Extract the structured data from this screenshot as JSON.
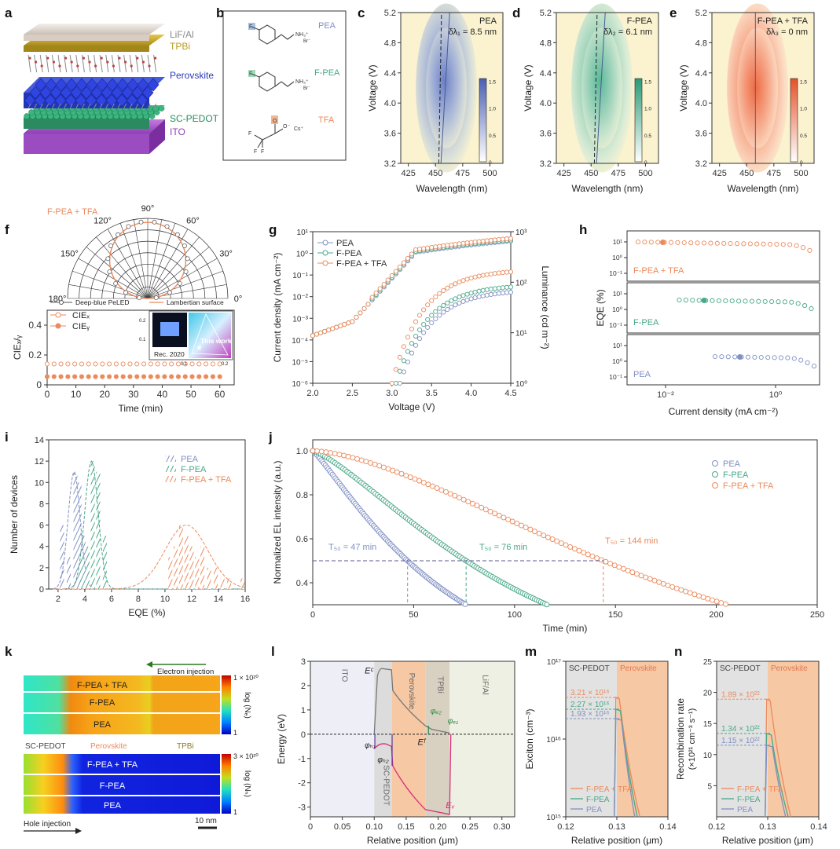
{
  "panel_labels": [
    "a",
    "b",
    "c",
    "d",
    "e",
    "f",
    "g",
    "h",
    "i",
    "j",
    "k",
    "l",
    "m",
    "n"
  ],
  "colors": {
    "pea": "#8090c4",
    "fpea": "#48a888",
    "tfa": "#ec8a5c",
    "blue_fill": "#7d8ecc",
    "green_fill": "#5bb596",
    "orange_fill": "#f07a52",
    "cream": "#fbf3cf"
  },
  "panel_a": {
    "layers": [
      "LiF/Al",
      "TPBi",
      "Perovskite",
      "SC-PEDOT",
      "ITO"
    ]
  },
  "panel_b": {
    "molecules": [
      "PEA",
      "F-PEA",
      "TFA"
    ],
    "labels": {
      "f": "F",
      "nh": "NH₃⁺",
      "br": "Br⁻",
      "o": "O",
      "om": "O⁻",
      "cs": "Cs⁺",
      "f1": "F",
      "f2": "F",
      "f3": "F"
    }
  },
  "panels_cde": {
    "xlabel": "Wavelength (nm)",
    "ylabel": "Voltage (V)",
    "xticks": [
      "425",
      "450",
      "475",
      "500"
    ],
    "yticks": [
      "3.2",
      "3.6",
      "4.0",
      "4.4",
      "4.8",
      "5.2"
    ],
    "cbar_ticks": [
      "0",
      "0.5",
      "1.0",
      "1.5"
    ],
    "maps": [
      {
        "name": "PEA",
        "delta": "δλ₁ = 8.5 nm"
      },
      {
        "name": "F-PEA",
        "delta": "δλ₂ = 6.1 nm"
      },
      {
        "name": "F-PEA + TFA",
        "delta": "δλ₃ = 0 nm"
      }
    ]
  },
  "panel_f": {
    "polar_title": "F-PEA + TFA",
    "angles": [
      "0°",
      "30°",
      "60°",
      "90°",
      "120°",
      "150°",
      "180°"
    ],
    "polar_legend": [
      "Deep-blue PeLED",
      "Lambertian surface"
    ],
    "ylabel": "CIEₓ/ᵧ",
    "xlabel": "Time (min)",
    "xticks": [
      "0",
      "10",
      "20",
      "30",
      "40",
      "50",
      "60"
    ],
    "yticks": [
      "0",
      "0.2",
      "0.4"
    ],
    "legend": [
      "CIEₓ",
      "CIEᵧ"
    ],
    "inset_labels": [
      "Rec. 2020",
      "This work"
    ],
    "inset_ticks": [
      "0.2",
      "0.1",
      "0.1",
      "0.2"
    ],
    "cie_x": 0.14,
    "cie_y": 0.055
  },
  "panel_g": {
    "xlabel": "Voltage (V)",
    "ylabel_left": "Current density (mA cm⁻²)",
    "ylabel_right": "Luminance (cd m⁻²)",
    "xticks": [
      "2.0",
      "2.5",
      "3.0",
      "3.5",
      "4.0",
      "4.5"
    ],
    "yticks_left": [
      "10⁻⁶",
      "10⁻⁵",
      "10⁻⁴",
      "10⁻³",
      "10⁻²",
      "10⁻¹",
      "10⁰",
      "10¹"
    ],
    "yticks_right": [
      "10⁰",
      "10¹",
      "10²",
      "10³"
    ],
    "legend": [
      "PEA",
      "F-PEA",
      "F-PEA + TFA"
    ]
  },
  "panel_h": {
    "xlabel": "Current density (mA cm⁻²)",
    "ylabel": "EQE (%)",
    "xticks": [
      "10⁻²",
      "10⁰"
    ],
    "series_labels": [
      "F-PEA + TFA",
      "F-PEA",
      "PEA"
    ],
    "ytick_top": [
      "10¹",
      "10⁰",
      "10⁻¹"
    ],
    "ytick_mid": [
      "10¹",
      "10⁰",
      "10⁻¹"
    ],
    "ytick_bot": [
      "10¹",
      "10⁰",
      "10⁻¹"
    ]
  },
  "panel_i": {
    "xlabel": "EQE (%)",
    "ylabel": "Number of devices",
    "xticks": [
      "2",
      "4",
      "6",
      "8",
      "10",
      "12",
      "14",
      "16"
    ],
    "yticks": [
      "0",
      "2",
      "4",
      "6",
      "8",
      "10",
      "12",
      "14"
    ],
    "legend": [
      "PEA",
      "F-PEA",
      "F-PEA + TFA"
    ],
    "chart_data": {
      "type": "bar",
      "xlabel": "EQE (%)",
      "ylabel": "Number of devices",
      "ylim": [
        0,
        14
      ],
      "series": [
        {
          "name": "PEA",
          "x": [
            2.3,
            2.8,
            3.3,
            3.6,
            3.9
          ],
          "values": [
            6,
            3,
            11,
            10,
            5
          ]
        },
        {
          "name": "F-PEA",
          "x": [
            3.7,
            4.2,
            4.6,
            5.0,
            5.5
          ],
          "values": [
            3,
            4,
            12,
            11,
            5
          ]
        },
        {
          "name": "F-PEA + TFA",
          "x": [
            10.4,
            10.8,
            11.2,
            11.6,
            12.0,
            12.4,
            12.8,
            13.3,
            13.8,
            14.3,
            14.8,
            15.8
          ],
          "values": [
            3,
            4,
            6,
            5,
            4,
            3,
            4,
            2,
            2,
            1,
            1,
            1
          ]
        }
      ]
    }
  },
  "panel_j": {
    "xlabel": "Time (min)",
    "ylabel": "Normalized EL intensity (a.u.)",
    "xticks": [
      "0",
      "50",
      "100",
      "150",
      "200",
      "250"
    ],
    "yticks": [
      "0.4",
      "0.6",
      "0.8",
      "1.0"
    ],
    "legend": [
      "PEA",
      "F-PEA",
      "F-PEA + TFA"
    ],
    "t50": [
      {
        "label": "T₅₀ = 47 min",
        "t": 47
      },
      {
        "label": "T₅₀ = 76 min",
        "t": 76
      },
      {
        "label": "T₅₀ = 144 min",
        "t": 144
      }
    ],
    "chart_data": {
      "type": "scatter",
      "xlabel": "Time (min)",
      "ylabel": "Normalized EL intensity (a.u.)",
      "xlim": [
        0,
        250
      ],
      "ylim": [
        0.3,
        1.05
      ],
      "series": [
        {
          "name": "PEA",
          "t50": 47,
          "end_t": 92
        },
        {
          "name": "F-PEA",
          "t50": 76,
          "end_t": 127
        },
        {
          "name": "F-PEA + TFA",
          "t50": 144,
          "end_t": 250
        }
      ]
    }
  },
  "panel_k": {
    "top_rows": [
      "F-PEA + TFA",
      "F-PEA",
      "PEA"
    ],
    "bot_rows": [
      "F-PEA + TFA",
      "F-PEA",
      "PEA"
    ],
    "top_scale": "1 × 10²⁰",
    "bot_scale": "3 × 10²⁰",
    "top_label": "log (Nₑ)",
    "bot_label": "log (Nₕ)",
    "cbar_min": "1",
    "electron_injection": "Electron injection",
    "hole_injection": "Hole injection",
    "regions": [
      "SC-PEDOT",
      "Perovskite",
      "TPBi"
    ],
    "scale_bar": "10 nm"
  },
  "panel_l": {
    "xlabel": "Relative position (μm)",
    "ylabel": "Energy (eV)",
    "xticks": [
      "0",
      "0.05",
      "0.10",
      "0.15",
      "0.20",
      "0.25",
      "0.30"
    ],
    "yticks": [
      "-3",
      "-2",
      "-1",
      "0",
      "1",
      "2",
      "3"
    ],
    "regions": [
      "ITO",
      "SC-PEDOT",
      "Perovskite",
      "TPBi",
      "LiF/Al"
    ],
    "annotations": {
      "ec": "Eᶜ",
      "ev": "Eᵥ",
      "ef": "Eᶠ",
      "ph1": "φₕ₁",
      "ph2": "φₕ₂",
      "pe2": "φₑ₂",
      "pe1": "φₑ₁"
    }
  },
  "panel_m": {
    "xlabel": "Relative position (μm)",
    "ylabel": "Exciton (cm⁻³)",
    "xticks": [
      "0.12",
      "0.13",
      "0.14"
    ],
    "yticks": [
      "10¹⁵",
      "10¹⁶",
      "10¹⁷"
    ],
    "regions": [
      "SC-PEDOT",
      "Perovskite"
    ],
    "values": [
      "3.21 × 10¹⁶",
      "2.27 × 10¹⁶",
      "1.93 × 10¹⁶"
    ],
    "legend": [
      "F-PEA + TFA",
      "F-PEA",
      "PEA"
    ]
  },
  "panel_n": {
    "xlabel": "Relative position (μm)",
    "ylabel": "Recombination rate",
    "ylabel2": "(×10²¹ cm⁻³ s⁻¹)",
    "xticks": [
      "0.12",
      "0.13",
      "0.14"
    ],
    "yticks": [
      "5",
      "10",
      "15",
      "20",
      "25"
    ],
    "regions": [
      "SC-PEDOT",
      "Perovskite"
    ],
    "values": [
      "1.89 × 10²²",
      "1.34 × 10²²",
      "1.15 × 10²²"
    ],
    "legend": [
      "F-PEA + TFA",
      "F-PEA",
      "PEA"
    ]
  }
}
